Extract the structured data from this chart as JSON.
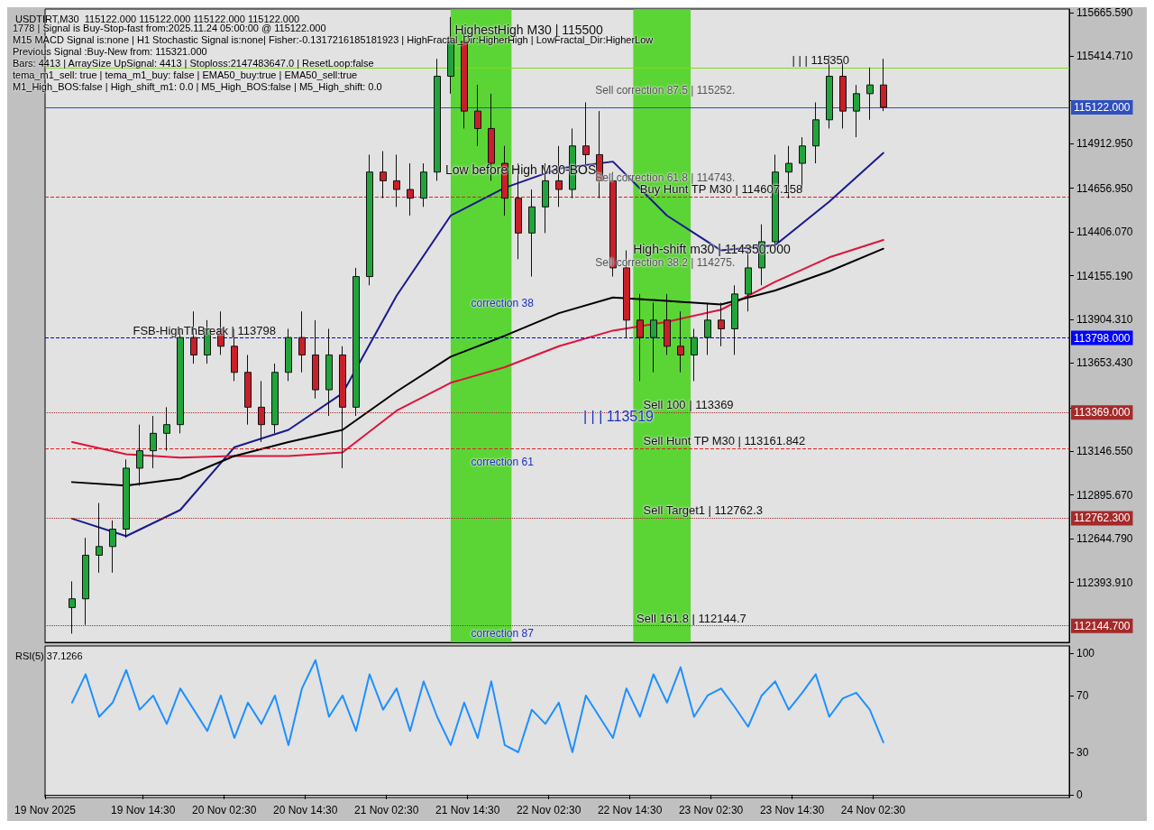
{
  "chart_data": [
    {
      "type": "candlestick",
      "title": "USDTIRT,M30  115122.000 115122.000 115122.000 115122.000",
      "x": [
        "2025-11-19T04:00",
        "2025-11-19T06:00",
        "2025-11-19T08:00",
        "2025-11-19T10:00",
        "2025-11-19T12:00",
        "2025-11-19T14:00",
        "2025-11-19T16:00",
        "2025-11-19T18:00",
        "2025-11-19T20:00",
        "2025-11-19T22:00",
        "2025-11-20T00:00",
        "2025-11-20T02:00",
        "2025-11-20T04:00",
        "2025-11-20T06:00",
        "2025-11-20T08:00",
        "2025-11-20T10:00",
        "2025-11-20T12:00",
        "2025-11-20T14:00",
        "2025-11-20T16:00",
        "2025-11-20T18:00",
        "2025-11-20T20:00",
        "2025-11-20T22:00",
        "2025-11-21T00:00",
        "2025-11-21T02:00",
        "2025-11-21T04:00",
        "2025-11-21T06:00",
        "2025-11-21T08:00",
        "2025-11-21T10:00",
        "2025-11-21T12:00",
        "2025-11-21T14:00",
        "2025-11-21T16:00",
        "2025-11-21T18:00",
        "2025-11-21T20:00",
        "2025-11-21T22:00",
        "2025-11-22T00:00",
        "2025-11-22T02:00",
        "2025-11-22T04:00",
        "2025-11-22T06:00",
        "2025-11-22T08:00",
        "2025-11-22T10:00",
        "2025-11-22T12:00",
        "2025-11-22T14:00",
        "2025-11-22T16:00",
        "2025-11-22T18:00",
        "2025-11-22T20:00",
        "2025-11-22T22:00",
        "2025-11-23T00:00",
        "2025-11-23T02:00",
        "2025-11-23T04:00",
        "2025-11-23T06:00",
        "2025-11-23T08:00",
        "2025-11-23T10:00",
        "2025-11-23T12:00",
        "2025-11-23T14:00",
        "2025-11-23T16:00",
        "2025-11-23T18:00",
        "2025-11-23T20:00",
        "2025-11-23T22:00",
        "2025-11-24T00:00",
        "2025-11-24T02:00",
        "2025-11-24T04:00"
      ],
      "ohlc": [
        [
          112250,
          112400,
          112100,
          112300
        ],
        [
          112300,
          112650,
          112150,
          112550
        ],
        [
          112550,
          112850,
          112450,
          112600
        ],
        [
          112600,
          112750,
          112450,
          112700
        ],
        [
          112700,
          113100,
          112650,
          113050
        ],
        [
          113050,
          113300,
          112950,
          113150
        ],
        [
          113150,
          113350,
          113050,
          113250
        ],
        [
          113250,
          113400,
          113150,
          113300
        ],
        [
          113300,
          113850,
          113250,
          113800
        ],
        [
          113800,
          113950,
          113650,
          113700
        ],
        [
          113700,
          113900,
          113650,
          113850
        ],
        [
          113850,
          113950,
          113700,
          113750
        ],
        [
          113750,
          113850,
          113550,
          113600
        ],
        [
          113600,
          113700,
          113300,
          113400
        ],
        [
          113400,
          113550,
          113200,
          113300
        ],
        [
          113300,
          113650,
          113250,
          113600
        ],
        [
          113600,
          113850,
          113550,
          113800
        ],
        [
          113800,
          113950,
          113600,
          113700
        ],
        [
          113700,
          113900,
          113450,
          113500
        ],
        [
          113500,
          113850,
          113350,
          113700
        ],
        [
          113700,
          113750,
          113050,
          113400
        ],
        [
          113400,
          114200,
          113350,
          114150
        ],
        [
          114150,
          114850,
          114100,
          114750
        ],
        [
          114750,
          114870,
          114600,
          114700
        ],
        [
          114700,
          114850,
          114550,
          114650
        ],
        [
          114650,
          114800,
          114500,
          114600
        ],
        [
          114600,
          114800,
          114550,
          114750
        ],
        [
          114750,
          115400,
          114700,
          115300
        ],
        [
          115300,
          115640,
          115200,
          115500
        ],
        [
          115500,
          115550,
          115000,
          115100
        ],
        [
          115100,
          115250,
          114900,
          115000
        ],
        [
          115000,
          115200,
          114700,
          114800
        ],
        [
          114800,
          114900,
          114500,
          114600
        ],
        [
          114600,
          114800,
          114250,
          114400
        ],
        [
          114400,
          114650,
          114150,
          114550
        ],
        [
          114550,
          114800,
          114400,
          114700
        ],
        [
          114700,
          114900,
          114550,
          114650
        ],
        [
          114650,
          115000,
          114600,
          114900
        ],
        [
          114900,
          115150,
          114750,
          114850
        ],
        [
          114850,
          115100,
          114600,
          114700
        ],
        [
          114700,
          114750,
          114150,
          114200
        ],
        [
          114200,
          114300,
          113800,
          113900
        ],
        [
          113900,
          114050,
          113550,
          113800
        ],
        [
          113800,
          114000,
          113600,
          113900
        ],
        [
          113900,
          114050,
          113700,
          113750
        ],
        [
          113750,
          113950,
          113600,
          113700
        ],
        [
          113700,
          113850,
          113550,
          113800
        ],
        [
          113800,
          114000,
          113700,
          113900
        ],
        [
          113900,
          114000,
          113750,
          113850
        ],
        [
          113850,
          114100,
          113700,
          114050
        ],
        [
          114050,
          114300,
          113950,
          114200
        ],
        [
          114200,
          114450,
          114100,
          114350
        ],
        [
          114350,
          114850,
          114300,
          114750
        ],
        [
          114750,
          114900,
          114600,
          114800
        ],
        [
          114800,
          114950,
          114650,
          114900
        ],
        [
          114900,
          115150,
          114800,
          115050
        ],
        [
          115050,
          115420,
          115000,
          115300
        ],
        [
          115300,
          115380,
          115000,
          115100
        ],
        [
          115100,
          115250,
          114950,
          115200
        ],
        [
          115200,
          115350,
          115050,
          115250
        ],
        [
          115250,
          115400,
          115100,
          115122
        ]
      ],
      "series": [
        {
          "type": "line",
          "color": "#1a1a8c",
          "x": [
            "2025-11-19T04:00",
            "2025-11-19T12:00",
            "2025-11-19T20:00",
            "2025-11-20T04:00",
            "2025-11-20T12:00",
            "2025-11-20T20:00",
            "2025-11-21T04:00",
            "2025-11-21T12:00",
            "2025-11-21T20:00",
            "2025-11-22T04:00",
            "2025-11-22T12:00",
            "2025-11-22T20:00",
            "2025-11-23T04:00",
            "2025-11-23T12:00",
            "2025-11-23T20:00",
            "2025-11-24T04:00"
          ],
          "values": [
            112760,
            112660,
            112810,
            113170,
            113270,
            113480,
            114040,
            114500,
            114660,
            114770,
            114810,
            114500,
            114300,
            114330,
            114580,
            114860
          ]
        },
        {
          "type": "line",
          "color": "#dc143c",
          "x": [
            "2025-11-19T04:00",
            "2025-11-19T12:00",
            "2025-11-19T20:00",
            "2025-11-20T04:00",
            "2025-11-20T12:00",
            "2025-11-20T20:00",
            "2025-11-21T04:00",
            "2025-11-21T12:00",
            "2025-11-21T20:00",
            "2025-11-22T04:00",
            "2025-11-22T12:00",
            "2025-11-22T20:00",
            "2025-11-23T04:00",
            "2025-11-23T12:00",
            "2025-11-23T20:00",
            "2025-11-24T04:00"
          ],
          "values": [
            113200,
            113130,
            113110,
            113120,
            113120,
            113140,
            113380,
            113540,
            113630,
            113750,
            113840,
            113890,
            113960,
            114120,
            114260,
            114360
          ]
        },
        {
          "type": "line",
          "color": "#000000",
          "x": [
            "2025-11-19T04:00",
            "2025-11-19T12:00",
            "2025-11-19T20:00",
            "2025-11-20T04:00",
            "2025-11-20T12:00",
            "2025-11-20T20:00",
            "2025-11-21T04:00",
            "2025-11-21T12:00",
            "2025-11-21T20:00",
            "2025-11-22T04:00",
            "2025-11-22T12:00",
            "2025-11-22T20:00",
            "2025-11-23T04:00",
            "2025-11-23T12:00",
            "2025-11-23T20:00",
            "2025-11-24T04:00"
          ],
          "values": [
            112970,
            112950,
            112990,
            113120,
            113200,
            113270,
            113490,
            113690,
            113810,
            113940,
            114030,
            114010,
            113990,
            114070,
            114180,
            114310
          ]
        }
      ],
      "xlim": [
        "2025-11-19T00:00",
        "2025-11-25T07:30"
      ],
      "ylim": [
        112050,
        115686
      ],
      "yticks": [
        {
          "value": 115665.59,
          "label": "115665.590"
        },
        {
          "value": 115414.71,
          "label": "115414.710"
        },
        {
          "value": 115163.82,
          "label": null
        },
        {
          "value": 114912.95,
          "label": "114912.950"
        },
        {
          "value": 114656.95,
          "label": "114656.950"
        },
        {
          "value": 114406.07,
          "label": "114406.070"
        },
        {
          "value": 114155.19,
          "label": "114155.190"
        },
        {
          "value": 113904.31,
          "label": "113904.310"
        },
        {
          "value": 113653.43,
          "label": "113653.430"
        },
        {
          "value": 113397.43,
          "label": null
        },
        {
          "value": 113146.55,
          "label": "113146.550"
        },
        {
          "value": 112895.67,
          "label": "112895.670"
        },
        {
          "value": 112644.79,
          "label": "112644.790"
        },
        {
          "value": 112393.91,
          "label": "112393.910"
        }
      ],
      "tick_labels": "y",
      "ref_lines": [
        {
          "axis": "y",
          "value": 115122,
          "label": "115122.000",
          "color": "#3050c0",
          "line_style": "solid"
        },
        {
          "axis": "y",
          "value": 113798,
          "label": "113798.000",
          "color": "#0000ff",
          "line_style": "dashed"
        },
        {
          "axis": "y",
          "value": 113369,
          "label": "113369.000",
          "color": "#a52a2a",
          "line_style": "dotted"
        },
        {
          "axis": "y",
          "value": 112762.3,
          "label": "112762.300",
          "color": "#a52a2a",
          "line_style": "dotted"
        },
        {
          "axis": "y",
          "value": 112144.7,
          "label": "112144.700",
          "color": "#a52a2a",
          "line_style": "dotted"
        },
        {
          "axis": "y",
          "value": 115350,
          "color": "#7cdc20",
          "line_style": "solid"
        },
        {
          "axis": "y",
          "value": 114607.158,
          "color": "#e02020",
          "line_style": "dashed"
        },
        {
          "axis": "y",
          "value": 113161.842,
          "color": "#e02020",
          "line_style": "dashed"
        }
      ],
      "bands": [
        {
          "axis": "x",
          "from": "2025-11-21T12:00",
          "to": "2025-11-21T21:00",
          "color": "#4cd424"
        },
        {
          "axis": "x",
          "from": "2025-11-22T15:00",
          "to": "2025-11-22T23:30",
          "color": "#4cd424"
        }
      ],
      "annotations": [
        "1778 | Signal is Buy-Stop-fast from:2025.11.24 05:00:00 @ 115122.000",
        "M15 MACD Signal is:none | H1 Stochastic Signal is:none| Fisher:-0.1317216185181923 | HighFractal_Dir:HigherHigh | LowFractal_Dir:HigherLow",
        "Previous Signal :Buy-New from: 115321.000",
        "Bars: 4413 | ArraySize UpSignal: 4413 | Stoploss:2147483647.0 | ResetLoop:false",
        "tema_m1_sell: true | tema_m1_buy: false | EMA50_buy:true | EMA50_sell:true",
        "M1_High_BOS:false | High_shift_m1: 0.0 | M5_High_BOS:false | M5_High_shift: 0.0",
        "HighestHigh    M30 | 115500",
        "Sell correction 87.5 | 115252.",
        "Low before High    M30-BOS",
        "Sell correction 61.8 | 114743.",
        "Sell correction 38.2 | 114275.",
        "High-shift m30 | 114350.000",
        "correction 38",
        "| | | 113519",
        "correction 61",
        "correction 87",
        {
          "text": "| | | 115350",
          "x": "2025-11-23T14:30",
          "y": 115350
        },
        {
          "text": "Buy Hunt TP M30 | 114607.158",
          "x": "2025-11-22T16:00",
          "y": 114607.158
        },
        {
          "text": "FSB-HighThBreak | 113798",
          "x": "2025-11-19T13:00",
          "y": 113798
        },
        {
          "text": "Sell 100 | 113369",
          "x": "2025-11-22T16:30",
          "y": 113369
        },
        {
          "text": "Sell Hunt TP M30 | 113161.842",
          "x": "2025-11-22T16:30",
          "y": 113161.842
        },
        {
          "text": "Sell Target1 | 112762.3",
          "x": "2025-11-22T16:30",
          "y": 112762.3
        },
        {
          "text": "Sell 161.8 | 112144.7",
          "x": "2025-11-22T15:30",
          "y": 112144.7
        }
      ]
    },
    {
      "type": "line",
      "title": "RSI(5) 37.1266",
      "color": "#1e90ff",
      "x": [
        "2025-11-19T04:00",
        "2025-11-19T06:00",
        "2025-11-19T08:00",
        "2025-11-19T10:00",
        "2025-11-19T12:00",
        "2025-11-19T14:00",
        "2025-11-19T16:00",
        "2025-11-19T18:00",
        "2025-11-19T20:00",
        "2025-11-19T22:00",
        "2025-11-20T00:00",
        "2025-11-20T02:00",
        "2025-11-20T04:00",
        "2025-11-20T06:00",
        "2025-11-20T08:00",
        "2025-11-20T10:00",
        "2025-11-20T12:00",
        "2025-11-20T14:00",
        "2025-11-20T16:00",
        "2025-11-20T18:00",
        "2025-11-20T20:00",
        "2025-11-20T22:00",
        "2025-11-21T00:00",
        "2025-11-21T02:00",
        "2025-11-21T04:00",
        "2025-11-21T06:00",
        "2025-11-21T08:00",
        "2025-11-21T10:00",
        "2025-11-21T12:00",
        "2025-11-21T14:00",
        "2025-11-21T16:00",
        "2025-11-21T18:00",
        "2025-11-21T20:00",
        "2025-11-21T22:00",
        "2025-11-22T00:00",
        "2025-11-22T02:00",
        "2025-11-22T04:00",
        "2025-11-22T06:00",
        "2025-11-22T08:00",
        "2025-11-22T10:00",
        "2025-11-22T12:00",
        "2025-11-22T14:00",
        "2025-11-22T16:00",
        "2025-11-22T18:00",
        "2025-11-22T20:00",
        "2025-11-22T22:00",
        "2025-11-23T00:00",
        "2025-11-23T02:00",
        "2025-11-23T04:00",
        "2025-11-23T06:00",
        "2025-11-23T08:00",
        "2025-11-23T10:00",
        "2025-11-23T12:00",
        "2025-11-23T14:00",
        "2025-11-23T16:00",
        "2025-11-23T18:00",
        "2025-11-23T20:00",
        "2025-11-23T22:00",
        "2025-11-24T00:00",
        "2025-11-24T02:00",
        "2025-11-24T04:00"
      ],
      "values": [
        65,
        85,
        55,
        65,
        88,
        60,
        70,
        50,
        75,
        60,
        45,
        70,
        40,
        65,
        50,
        70,
        35,
        75,
        95,
        55,
        70,
        45,
        85,
        60,
        75,
        45,
        80,
        55,
        35,
        65,
        40,
        80,
        35,
        30,
        60,
        50,
        65,
        30,
        70,
        55,
        40,
        75,
        55,
        85,
        65,
        90,
        55,
        70,
        75,
        62,
        48,
        70,
        80,
        60,
        72,
        85,
        55,
        68,
        72,
        60,
        37
      ],
      "xlim": [
        "2025-11-19T00:00",
        "2025-11-25T07:30"
      ],
      "xticks": [
        {
          "value": "2025-11-19T00:00",
          "label": "19 Nov 2025"
        },
        {
          "value": "2025-11-19T14:30",
          "label": "19 Nov 14:30"
        },
        {
          "value": "2025-11-20T02:30",
          "label": "20 Nov 02:30"
        },
        {
          "value": "2025-11-20T14:30",
          "label": "20 Nov 14:30"
        },
        {
          "value": "2025-11-21T02:30",
          "label": "21 Nov 02:30"
        },
        {
          "value": "2025-11-21T14:30",
          "label": "21 Nov 14:30"
        },
        {
          "value": "2025-11-22T02:30",
          "label": "22 Nov 02:30"
        },
        {
          "value": "2025-11-22T14:30",
          "label": "22 Nov 14:30"
        },
        {
          "value": "2025-11-23T02:30",
          "label": "23 Nov 02:30"
        },
        {
          "value": "2025-11-23T14:30",
          "label": "23 Nov 14:30"
        },
        {
          "value": "2025-11-24T02:30",
          "label": "24 Nov 02:30"
        }
      ],
      "ylim": [
        -2,
        105
      ],
      "yticks": [
        0,
        30,
        70,
        100
      ]
    }
  ]
}
